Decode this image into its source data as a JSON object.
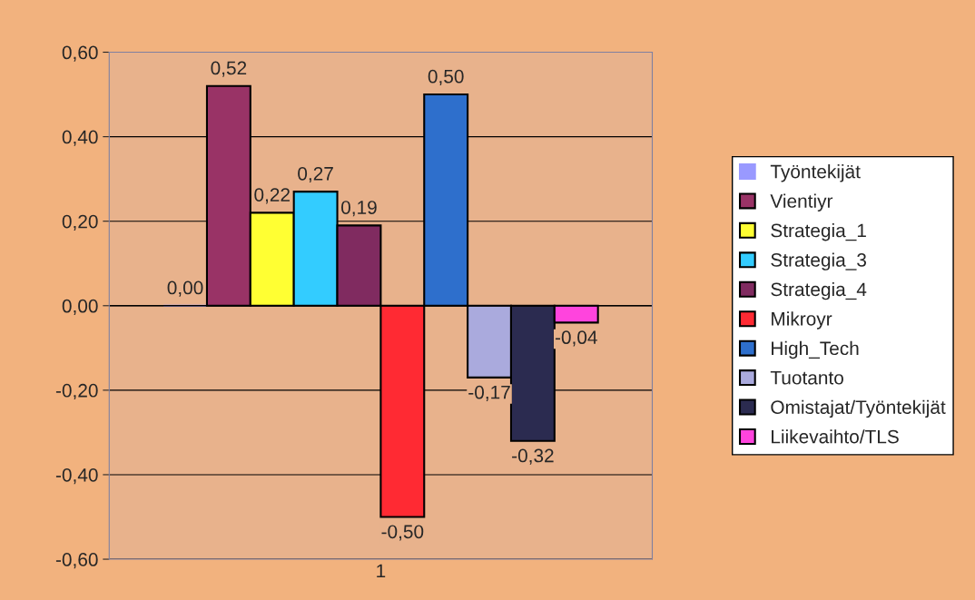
{
  "chart_data": {
    "type": "bar",
    "categories": [
      "1"
    ],
    "series": [
      {
        "name": "Työntekijät",
        "color": "#9999ff",
        "values": [
          0.0
        ],
        "value_labels": [
          "0,00"
        ]
      },
      {
        "name": "Vientiyr",
        "color": "#993366",
        "values": [
          0.52
        ],
        "value_labels": [
          "0,52"
        ]
      },
      {
        "name": "Strategia_1",
        "color": "#ffff33",
        "values": [
          0.22
        ],
        "value_labels": [
          "0,22"
        ]
      },
      {
        "name": "Strategia_3",
        "color": "#33ccff",
        "values": [
          0.27
        ],
        "value_labels": [
          "0,27"
        ]
      },
      {
        "name": "Strategia_4",
        "color": "#802b60",
        "values": [
          0.19
        ],
        "value_labels": [
          "0,19"
        ]
      },
      {
        "name": "Mikroyr",
        "color": "#ff2a33",
        "values": [
          -0.5
        ],
        "value_labels": [
          "-0,50"
        ]
      },
      {
        "name": "High_Tech",
        "color": "#2e6fcc",
        "values": [
          0.5
        ],
        "value_labels": [
          "0,50"
        ]
      },
      {
        "name": "Tuotanto",
        "color": "#aaaadd",
        "values": [
          -0.17
        ],
        "value_labels": [
          "-0,17"
        ]
      },
      {
        "name": "Omistajat/Työntekijät",
        "color": "#2b2b50",
        "values": [
          -0.32
        ],
        "value_labels": [
          "-0,32"
        ]
      },
      {
        "name": "Liikevaihto/TLS",
        "color": "#ff44dd",
        "values": [
          -0.04
        ],
        "value_labels": [
          "-0,04"
        ]
      }
    ],
    "ylim": [
      -0.6,
      0.6
    ],
    "yticks": [
      {
        "value": -0.6,
        "label": "-0,60"
      },
      {
        "value": -0.4,
        "label": "-0,40"
      },
      {
        "value": -0.2,
        "label": "-0,20"
      },
      {
        "value": 0,
        "label": "0,00"
      },
      {
        "value": 0.2,
        "label": "0,20"
      },
      {
        "value": 0.4,
        "label": "0,40"
      },
      {
        "value": 0.6,
        "label": "0,60"
      }
    ],
    "grid": "y",
    "legend": "right"
  }
}
